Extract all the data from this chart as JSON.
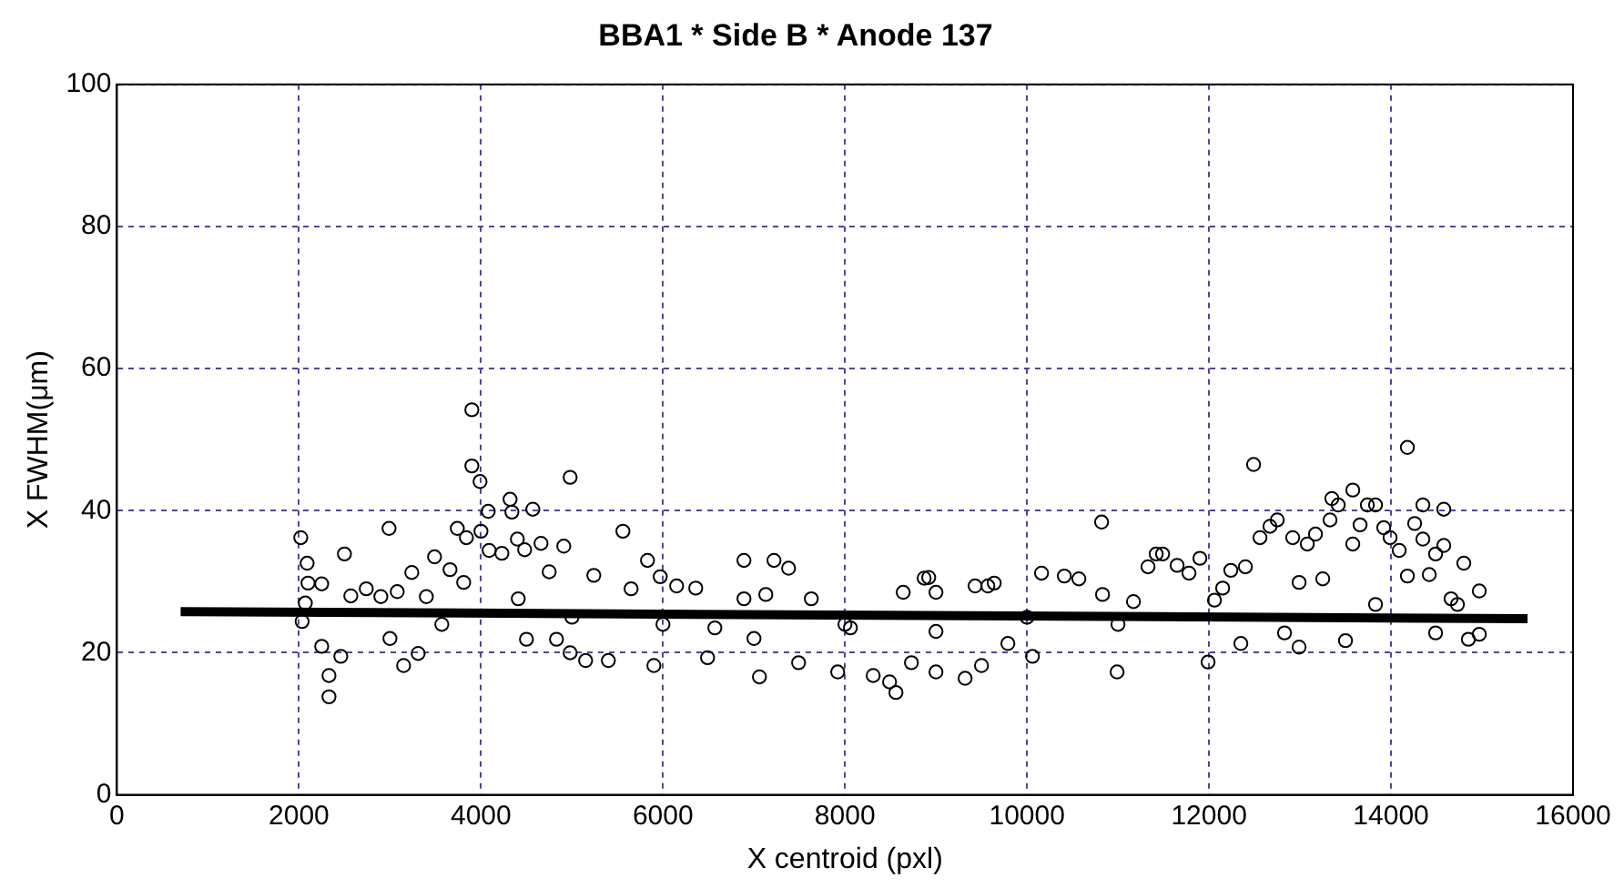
{
  "chart_data": {
    "type": "scatter",
    "title": "BBA1 * Side B * Anode 137",
    "xlabel": "X centroid (pxl)",
    "ylabel": "X FWHM(μm)",
    "xlim": [
      0,
      16000
    ],
    "xticks": [
      0,
      2000,
      4000,
      6000,
      8000,
      10000,
      12000,
      14000,
      16000
    ],
    "ylim": [
      0,
      100
    ],
    "yticks": [
      0,
      20,
      40,
      60,
      80,
      100
    ],
    "grid": true,
    "legend": false,
    "marker": "circle",
    "series": [
      {
        "color": "#000000",
        "x": [
          2020,
          2090,
          2100,
          2250,
          2070,
          2035,
          2250,
          2330,
          2330,
          2500,
          2460,
          2570,
          2740,
          2900,
          2990,
          3080,
          3150,
          3240,
          3310,
          3400,
          3490,
          3570,
          3660,
          3740,
          3810,
          3840,
          3900,
          3900,
          3990,
          4000,
          4080,
          4090,
          4230,
          4320,
          4340,
          4400,
          4480,
          4570,
          4410,
          4500,
          4660,
          4750,
          4830,
          4910,
          4980,
          4980,
          5150,
          5240,
          5400,
          5560,
          5650,
          5830,
          5900,
          5970,
          6150,
          6360,
          6490,
          6570,
          6890,
          6890,
          7060,
          7130,
          7220,
          7380,
          7490,
          7630,
          7920,
          8060,
          8310,
          8490,
          8560,
          8640,
          8730,
          8870,
          8920,
          9000,
          9000,
          9320,
          9430,
          9570,
          9640,
          9500,
          9790,
          10060,
          10160,
          10410,
          10570,
          10820,
          10830,
          10990,
          11170,
          11330,
          11420,
          11490,
          11650,
          11780,
          11900,
          11990,
          12060,
          12150,
          12240,
          12350,
          12400,
          12490,
          12560,
          12670,
          12750,
          12830,
          12920,
          12990,
          12990,
          13080,
          13170,
          13250,
          13330,
          13350,
          13420,
          13500,
          13580,
          13580,
          13660,
          13740,
          13830,
          13830,
          13920,
          13990,
          14090,
          14180,
          14180,
          14260,
          14350,
          14350,
          14420,
          14490,
          14490,
          14580,
          14580,
          14660,
          14730,
          14800,
          14850,
          14970,
          14970,
          3000,
          5000,
          6000,
          7000,
          8000,
          9000,
          10000,
          11000
        ],
        "values": [
          36.2,
          32.6,
          29.8,
          29.7,
          27,
          24.4,
          20.9,
          16.8,
          13.8,
          33.9,
          19.5,
          28,
          29,
          27.9,
          37.5,
          28.6,
          18.2,
          31.3,
          19.9,
          27.9,
          33.5,
          24,
          31.7,
          37.5,
          29.9,
          36.2,
          54.2,
          46.3,
          44.1,
          37.1,
          39.9,
          34.4,
          34,
          41.6,
          39.8,
          36,
          34.5,
          40.2,
          27.6,
          21.9,
          35.4,
          31.4,
          21.9,
          35,
          44.7,
          20,
          18.9,
          30.9,
          18.9,
          37.1,
          29,
          33,
          18.2,
          30.7,
          29.4,
          29.1,
          19.3,
          23.5,
          33,
          27.6,
          16.6,
          28.2,
          33,
          31.9,
          18.6,
          27.6,
          17.3,
          23.5,
          16.8,
          15.9,
          14.4,
          28.5,
          18.6,
          30.5,
          30.6,
          28.5,
          17.3,
          16.4,
          29.4,
          29.4,
          29.8,
          18.2,
          21.3,
          19.5,
          31.2,
          30.8,
          30.4,
          38.4,
          28.2,
          17.3,
          27.2,
          32.1,
          33.9,
          33.9,
          32.3,
          31.2,
          33.3,
          18.7,
          27.4,
          29.1,
          31.6,
          21.3,
          32.1,
          46.5,
          36.2,
          37.8,
          38.7,
          22.8,
          36.2,
          20.8,
          29.9,
          35.3,
          36.7,
          30.4,
          38.7,
          41.7,
          40.8,
          21.7,
          42.9,
          35.3,
          38,
          40.8,
          40.8,
          26.8,
          37.6,
          36.2,
          34.4,
          48.9,
          30.8,
          38.2,
          40.8,
          36,
          31,
          22.8,
          33.9,
          40.2,
          35.1,
          27.6,
          26.8,
          32.6,
          21.9,
          28.7,
          22.6,
          22,
          25,
          24,
          22,
          24,
          23,
          25,
          24
        ]
      },
      {
        "type": "line",
        "color": "#000000",
        "marker": "none",
        "x": [
          700,
          15500
        ],
        "values": [
          25.8,
          24.8
        ]
      }
    ]
  }
}
